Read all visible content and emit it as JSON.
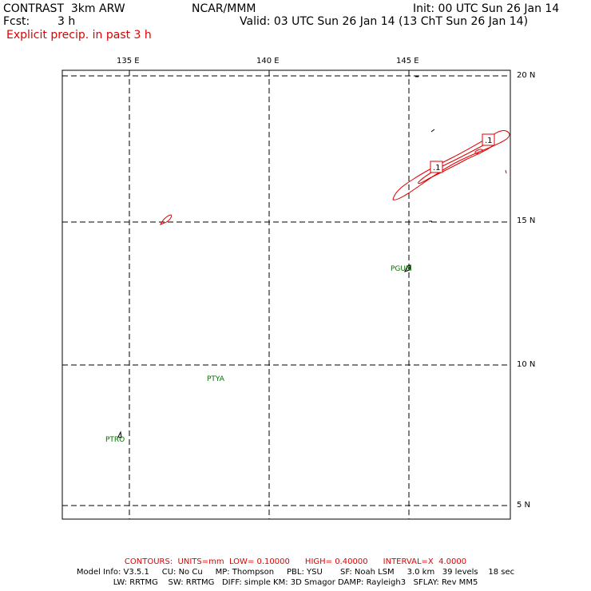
{
  "header": {
    "model": "CONTRAST  3km ARW",
    "org": "NCAR/MMM",
    "init": "Init: 00 UTC Sun 26 Jan 14",
    "fcst_label": "Fcst:",
    "fcst_value": "3 h",
    "valid": "Valid: 03 UTC Sun 26 Jan 14 (13 ChT Sun 26 Jan 14)",
    "field": "Explicit precip. in past 3 h"
  },
  "map": {
    "lon_labels": [
      "135 E",
      "140 E",
      "145 E"
    ],
    "lat_labels": [
      "20 N",
      "15 N",
      "10 N",
      "5 N"
    ],
    "stations": [
      "PGUM",
      "PTYA",
      "PTRO"
    ],
    "contour_labels": [
      ".1",
      ".1"
    ],
    "colors": {
      "contour": "#e00000",
      "station": "#007000",
      "grid": "#000000"
    }
  },
  "footer": {
    "contours": "CONTOURS:  UNITS=mm  LOW= 0.10000      HIGH= 0.40000      INTERVAL=X  4.0000",
    "model_info_1": "Model Info: V3.5.1     CU: No Cu     MP: Thompson     PBL: YSU       SF: Noah LSM     3.0 km   39 levels    18 sec",
    "model_info_2": "LW: RRTMG    SW: RRTMG   DIFF: simple KM: 3D Smagor DAMP: Rayleigh3   SFLAY: Rev MM5"
  }
}
